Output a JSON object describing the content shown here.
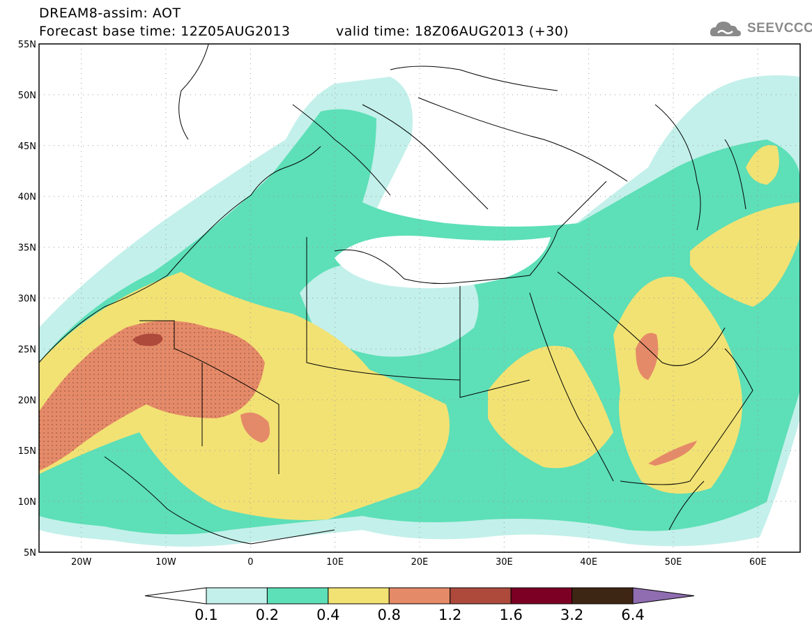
{
  "header": {
    "title": "DREAM8-assim: AOT",
    "base_time": "Forecast base time: 12Z05AUG2013",
    "valid_time": "valid time: 18Z06AUG2013 (+30)"
  },
  "logo": {
    "text": "SEEVCCC",
    "icon": "cloud-icon"
  },
  "map": {
    "lat_labels": [
      "55N",
      "50N",
      "45N",
      "40N",
      "35N",
      "30N",
      "25N",
      "20N",
      "15N",
      "10N",
      "5N"
    ],
    "lon_labels": [
      "20W",
      "10W",
      "0",
      "10E",
      "20E",
      "30E",
      "40E",
      "50E",
      "60E"
    ],
    "lat_range": [
      5,
      55
    ],
    "lon_range": [
      -25,
      65
    ],
    "grid": "dotted"
  },
  "colorbar": {
    "levels": [
      "0.1",
      "0.2",
      "0.4",
      "0.8",
      "1.2",
      "1.6",
      "3.2",
      "6.4"
    ],
    "colors": [
      "#c3f0ea",
      "#5ddfb7",
      "#f2e274",
      "#e58a68",
      "#ad4a3c",
      "#7c0023",
      "#3e2614",
      "#8f6db0"
    ],
    "under_color": "#ffffff"
  }
}
